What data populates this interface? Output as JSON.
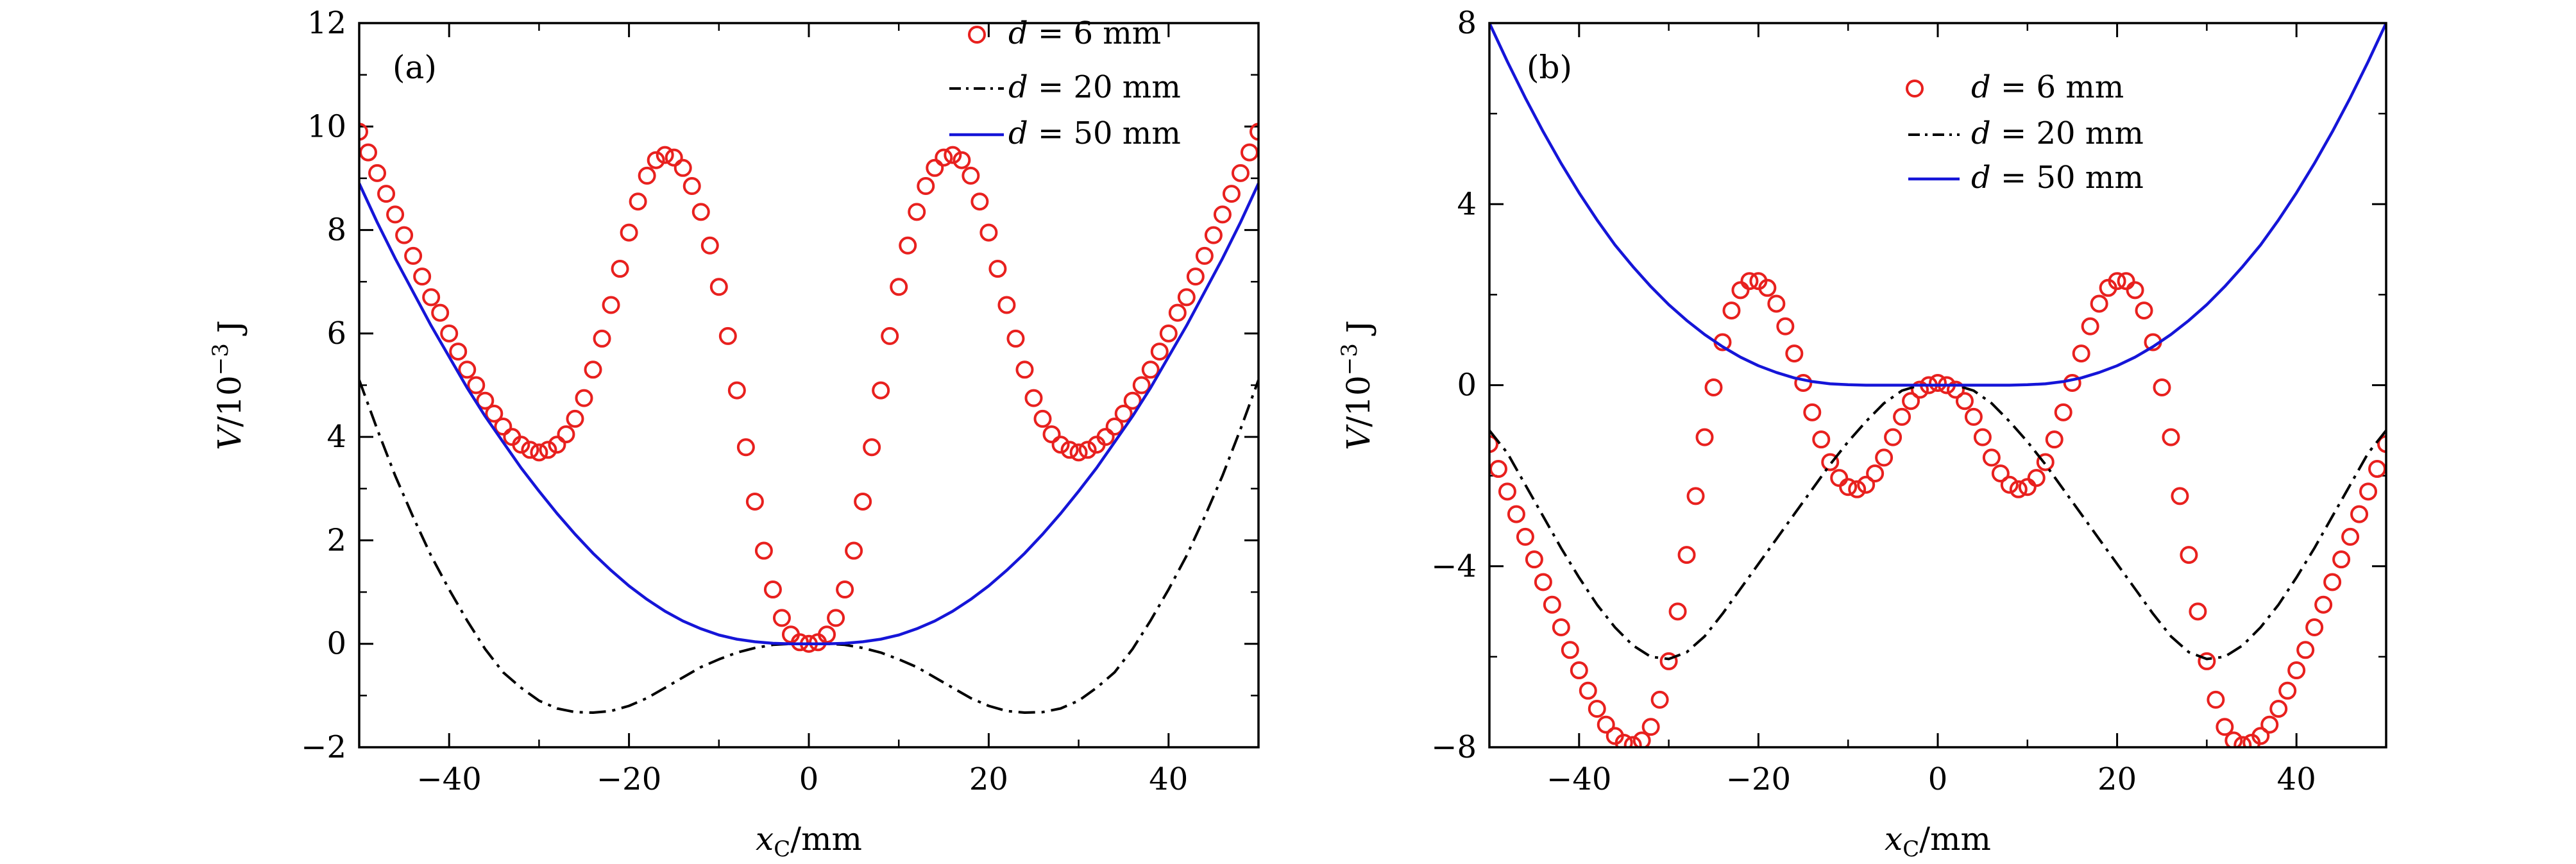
{
  "chart_data": [
    {
      "type": "line",
      "panel_label": "(a)",
      "xlabel": {
        "var": "x",
        "sub": "C",
        "unit": "/mm"
      },
      "ylabel": {
        "var": "V",
        "unit_pre": "/10",
        "exp": "−3",
        "unit_post": " J"
      },
      "xlim": [
        -50,
        50
      ],
      "ylim": [
        -2,
        12
      ],
      "xticks": [
        -40,
        -20,
        0,
        20,
        40
      ],
      "xtick_labels": [
        "−40",
        "−20",
        "0",
        "20",
        "40"
      ],
      "yticks": [
        -2,
        0,
        2,
        4,
        6,
        8,
        10,
        12
      ],
      "ytick_labels": [
        "−2",
        "0",
        "2",
        "4",
        "6",
        "8",
        "10",
        "12"
      ],
      "legend_position": "top-right",
      "series": [
        {
          "name": "d = 6 mm",
          "name_var": "d",
          "name_rest": " = 6 mm",
          "style": "markers",
          "color": "#e8201e",
          "x": [
            -50,
            -49,
            -48,
            -47,
            -46,
            -45,
            -44,
            -43,
            -42,
            -41,
            -40,
            -39,
            -38,
            -37,
            -36,
            -35,
            -34,
            -33,
            -32,
            -31,
            -30,
            -29,
            -28,
            -27,
            -26,
            -25,
            -24,
            -23,
            -22,
            -21,
            -20,
            -19,
            -18,
            -17,
            -16,
            -15,
            -14,
            -13,
            -12,
            -11,
            -10,
            -9,
            -8,
            -7,
            -6,
            -5,
            -4,
            -3,
            -2,
            -1,
            0,
            1,
            2,
            3,
            4,
            5,
            6,
            7,
            8,
            9,
            10,
            11,
            12,
            13,
            14,
            15,
            16,
            17,
            18,
            19,
            20,
            21,
            22,
            23,
            24,
            25,
            26,
            27,
            28,
            29,
            30,
            31,
            32,
            33,
            34,
            35,
            36,
            37,
            38,
            39,
            40,
            41,
            42,
            43,
            44,
            45,
            46,
            47,
            48,
            49,
            50
          ],
          "y": [
            9.9,
            9.5,
            9.1,
            8.7,
            8.3,
            7.9,
            7.5,
            7.1,
            6.7,
            6.4,
            6.0,
            5.65,
            5.3,
            5.0,
            4.7,
            4.45,
            4.2,
            4.0,
            3.85,
            3.75,
            3.7,
            3.75,
            3.85,
            4.05,
            4.35,
            4.75,
            5.3,
            5.9,
            6.55,
            7.25,
            7.95,
            8.55,
            9.05,
            9.35,
            9.45,
            9.4,
            9.2,
            8.85,
            8.35,
            7.7,
            6.9,
            5.95,
            4.9,
            3.8,
            2.75,
            1.8,
            1.05,
            0.5,
            0.18,
            0.03,
            0.0,
            0.03,
            0.18,
            0.5,
            1.05,
            1.8,
            2.75,
            3.8,
            4.9,
            5.95,
            6.9,
            7.7,
            8.35,
            8.85,
            9.2,
            9.4,
            9.45,
            9.35,
            9.05,
            8.55,
            7.95,
            7.25,
            6.55,
            5.9,
            5.3,
            4.75,
            4.35,
            4.05,
            3.85,
            3.75,
            3.7,
            3.75,
            3.85,
            4.0,
            4.2,
            4.45,
            4.7,
            5.0,
            5.3,
            5.65,
            6.0,
            6.4,
            6.7,
            7.1,
            7.5,
            7.9,
            8.3,
            8.7,
            9.1,
            9.5,
            9.9
          ]
        },
        {
          "name": "d = 20 mm",
          "name_var": "d",
          "name_rest": " = 20 mm",
          "style": "dashdot",
          "color": "#000000",
          "x": [
            -50,
            -48,
            -46,
            -44,
            -42,
            -40,
            -38,
            -36,
            -34,
            -32,
            -30,
            -28,
            -26,
            -24,
            -22,
            -20,
            -18,
            -16,
            -14,
            -12,
            -10,
            -8,
            -6,
            -4,
            -2,
            0,
            2,
            4,
            6,
            8,
            10,
            12,
            14,
            16,
            18,
            20,
            22,
            24,
            26,
            28,
            30,
            32,
            34,
            36,
            38,
            40,
            42,
            44,
            46,
            48,
            50
          ],
          "y": [
            5.1,
            4.15,
            3.25,
            2.45,
            1.7,
            1.05,
            0.45,
            -0.1,
            -0.55,
            -0.85,
            -1.1,
            -1.25,
            -1.32,
            -1.33,
            -1.3,
            -1.2,
            -1.05,
            -0.85,
            -0.65,
            -0.45,
            -0.3,
            -0.17,
            -0.08,
            -0.02,
            0.0,
            0.0,
            0.0,
            -0.02,
            -0.08,
            -0.17,
            -0.3,
            -0.45,
            -0.65,
            -0.85,
            -1.05,
            -1.2,
            -1.3,
            -1.33,
            -1.32,
            -1.25,
            -1.1,
            -0.85,
            -0.55,
            -0.1,
            0.45,
            1.05,
            1.7,
            2.45,
            3.25,
            4.15,
            5.1
          ]
        },
        {
          "name": "d = 50 mm",
          "name_var": "d",
          "name_rest": " = 50 mm",
          "style": "solid",
          "color": "#1515d8",
          "x": [
            -50,
            -48,
            -46,
            -44,
            -42,
            -40,
            -38,
            -36,
            -34,
            -32,
            -30,
            -28,
            -26,
            -24,
            -22,
            -20,
            -18,
            -16,
            -14,
            -12,
            -10,
            -8,
            -6,
            -4,
            -2,
            0,
            2,
            4,
            6,
            8,
            10,
            12,
            14,
            16,
            18,
            20,
            22,
            24,
            26,
            28,
            30,
            32,
            34,
            36,
            38,
            40,
            42,
            44,
            46,
            48,
            50
          ],
          "y": [
            8.9,
            8.15,
            7.45,
            6.8,
            6.15,
            5.55,
            4.95,
            4.4,
            3.9,
            3.4,
            2.95,
            2.52,
            2.12,
            1.75,
            1.42,
            1.12,
            0.86,
            0.63,
            0.44,
            0.29,
            0.17,
            0.09,
            0.04,
            0.01,
            0.0,
            0.0,
            0.0,
            0.01,
            0.04,
            0.09,
            0.17,
            0.29,
            0.44,
            0.63,
            0.86,
            1.12,
            1.42,
            1.75,
            2.12,
            2.52,
            2.95,
            3.4,
            3.9,
            4.4,
            4.95,
            5.55,
            6.15,
            6.8,
            7.45,
            8.15,
            8.9
          ]
        }
      ]
    },
    {
      "type": "line",
      "panel_label": "(b)",
      "xlabel": {
        "var": "x",
        "sub": "C",
        "unit": "/mm"
      },
      "ylabel": {
        "var": "V",
        "unit_pre": "/10",
        "exp": "−3",
        "unit_post": " J"
      },
      "xlim": [
        -50,
        50
      ],
      "ylim": [
        -8,
        8
      ],
      "xticks": [
        -40,
        -20,
        0,
        20,
        40
      ],
      "xtick_labels": [
        "−40",
        "−20",
        "0",
        "20",
        "40"
      ],
      "yticks": [
        -8,
        -4,
        0,
        4,
        8
      ],
      "ytick_labels": [
        "−8",
        "−4",
        "0",
        "4",
        "8"
      ],
      "legend_position": "top-center",
      "series": [
        {
          "name": "d = 6 mm",
          "name_var": "d",
          "name_rest": " = 6 mm",
          "style": "markers",
          "color": "#e8201e",
          "x": [
            -50,
            -49,
            -48,
            -47,
            -46,
            -45,
            -44,
            -43,
            -42,
            -41,
            -40,
            -39,
            -38,
            -37,
            -36,
            -35,
            -34,
            -33,
            -32,
            -31,
            -30,
            -29,
            -28,
            -27,
            -26,
            -25,
            -24,
            -23,
            -22,
            -21,
            -20,
            -19,
            -18,
            -17,
            -16,
            -15,
            -14,
            -13,
            -12,
            -11,
            -10,
            -9,
            -8,
            -7,
            -6,
            -5,
            -4,
            -3,
            -2,
            -1,
            0,
            1,
            2,
            3,
            4,
            5,
            6,
            7,
            8,
            9,
            10,
            11,
            12,
            13,
            14,
            15,
            16,
            17,
            18,
            19,
            20,
            21,
            22,
            23,
            24,
            25,
            26,
            27,
            28,
            29,
            30,
            31,
            32,
            33,
            34,
            35,
            36,
            37,
            38,
            39,
            40,
            41,
            42,
            43,
            44,
            45,
            46,
            47,
            48,
            49,
            50
          ],
          "y": [
            -1.3,
            -1.85,
            -2.35,
            -2.85,
            -3.35,
            -3.85,
            -4.35,
            -4.85,
            -5.35,
            -5.85,
            -6.3,
            -6.75,
            -7.15,
            -7.5,
            -7.75,
            -7.9,
            -7.95,
            -7.85,
            -7.55,
            -6.95,
            -6.1,
            -5.0,
            -3.75,
            -2.45,
            -1.15,
            -0.05,
            0.95,
            1.65,
            2.1,
            2.3,
            2.3,
            2.15,
            1.8,
            1.3,
            0.7,
            0.05,
            -0.6,
            -1.2,
            -1.7,
            -2.05,
            -2.25,
            -2.3,
            -2.2,
            -1.95,
            -1.6,
            -1.15,
            -0.7,
            -0.35,
            -0.1,
            0.0,
            0.05,
            0.0,
            -0.1,
            -0.35,
            -0.7,
            -1.15,
            -1.6,
            -1.95,
            -2.2,
            -2.3,
            -2.25,
            -2.05,
            -1.7,
            -1.2,
            -0.6,
            0.05,
            0.7,
            1.3,
            1.8,
            2.15,
            2.3,
            2.3,
            2.1,
            1.65,
            0.95,
            -0.05,
            -1.15,
            -2.45,
            -3.75,
            -5.0,
            -6.1,
            -6.95,
            -7.55,
            -7.85,
            -7.95,
            -7.9,
            -7.75,
            -7.5,
            -7.15,
            -6.75,
            -6.3,
            -5.85,
            -5.35,
            -4.85,
            -4.35,
            -3.85,
            -3.35,
            -2.85,
            -2.35,
            -1.85,
            -1.3
          ]
        },
        {
          "name": "d = 20 mm",
          "name_var": "d",
          "name_rest": " = 20 mm",
          "style": "dashdot",
          "color": "#000000",
          "x": [
            -50,
            -48,
            -46,
            -44,
            -42,
            -40,
            -38,
            -36,
            -34,
            -32,
            -30,
            -28,
            -26,
            -24,
            -22,
            -20,
            -18,
            -16,
            -14,
            -12,
            -10,
            -8,
            -6,
            -4,
            -2,
            0,
            2,
            4,
            6,
            8,
            10,
            12,
            14,
            16,
            18,
            20,
            22,
            24,
            26,
            28,
            30,
            32,
            34,
            36,
            38,
            40,
            42,
            44,
            46,
            48,
            50
          ],
          "y": [
            -1.0,
            -1.5,
            -2.2,
            -2.9,
            -3.6,
            -4.25,
            -4.85,
            -5.35,
            -5.75,
            -6.0,
            -6.05,
            -5.9,
            -5.55,
            -5.05,
            -4.5,
            -3.95,
            -3.4,
            -2.85,
            -2.3,
            -1.75,
            -1.25,
            -0.8,
            -0.4,
            -0.12,
            0.0,
            0.0,
            0.0,
            -0.12,
            -0.4,
            -0.8,
            -1.25,
            -1.75,
            -2.3,
            -2.85,
            -3.4,
            -3.95,
            -4.5,
            -5.05,
            -5.55,
            -5.9,
            -6.05,
            -6.0,
            -5.75,
            -5.35,
            -4.85,
            -4.25,
            -3.6,
            -2.9,
            -2.2,
            -1.5,
            -1.0
          ]
        },
        {
          "name": "d = 50 mm",
          "name_var": "d",
          "name_rest": " = 50 mm",
          "style": "solid",
          "color": "#1515d8",
          "x": [
            -50,
            -48,
            -46,
            -44,
            -42,
            -40,
            -38,
            -36,
            -34,
            -32,
            -30,
            -28,
            -26,
            -24,
            -22,
            -20,
            -18,
            -16,
            -14,
            -12,
            -10,
            -8,
            -6,
            -4,
            -2,
            0,
            2,
            4,
            6,
            8,
            10,
            12,
            14,
            16,
            18,
            20,
            22,
            24,
            26,
            28,
            30,
            32,
            34,
            36,
            38,
            40,
            42,
            44,
            46,
            48,
            50
          ],
          "y": [
            8.0,
            7.15,
            6.35,
            5.6,
            4.9,
            4.25,
            3.65,
            3.1,
            2.62,
            2.18,
            1.78,
            1.43,
            1.12,
            0.85,
            0.62,
            0.43,
            0.28,
            0.16,
            0.08,
            0.03,
            0.01,
            0.0,
            0.0,
            0.0,
            0.0,
            0.0,
            0.0,
            0.0,
            0.0,
            0.0,
            0.01,
            0.03,
            0.08,
            0.16,
            0.28,
            0.43,
            0.62,
            0.85,
            1.12,
            1.43,
            1.78,
            2.18,
            2.62,
            3.1,
            3.65,
            4.25,
            4.9,
            5.6,
            6.35,
            7.15,
            8.0
          ]
        }
      ]
    }
  ]
}
